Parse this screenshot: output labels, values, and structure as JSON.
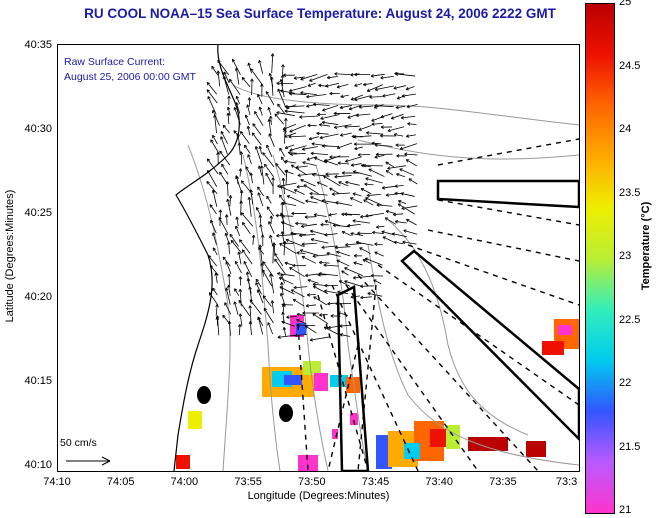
{
  "title": "RU COOL  NOAA–15  Sea Surface Temperature:  August 24, 2006 2222 GMT",
  "annotation": {
    "line1": "Raw Surface Current:",
    "line2": "August 25, 2006 00:00 GMT"
  },
  "scale": {
    "label": "50 cm/s"
  },
  "axes": {
    "xlabel": "Longitude (Degrees:Minutes)",
    "ylabel": "Latitude (Degrees:Minutes)",
    "xticks": [
      "74:10",
      "74:05",
      "74:00",
      "73:55",
      "73:50",
      "73:45",
      "73:40",
      "73:35",
      "73:3"
    ],
    "yticks": [
      "40:35",
      "40:30",
      "40:25",
      "40:20",
      "40:15",
      "40:10"
    ]
  },
  "colorbar": {
    "label": "Temperature (°C)",
    "ticks": [
      "25",
      "24.5",
      "24",
      "23.5",
      "23",
      "22.5",
      "22",
      "21.5",
      "21"
    ],
    "range": [
      21,
      25
    ],
    "colors": [
      "#ff33cc",
      "#b95bff",
      "#3355ff",
      "#00ccee",
      "#33eebb",
      "#bbee33",
      "#eeee00",
      "#ffaa00",
      "#ff6600",
      "#ee1100",
      "#bb0000"
    ]
  },
  "map_view": {
    "lon_range": [
      -74.1667,
      -73.5
    ],
    "lat_range": [
      40.1667,
      40.5833
    ]
  }
}
